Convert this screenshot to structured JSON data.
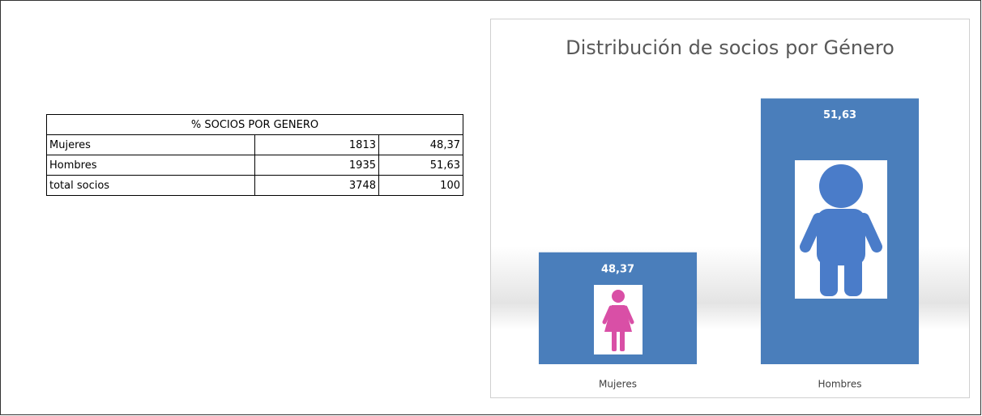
{
  "table": {
    "title": "% SOCIOS POR GENERO",
    "rows": [
      [
        "Mujeres",
        "1813",
        "48,37"
      ],
      [
        "Hombres",
        "1935",
        "51,63"
      ],
      [
        "total socios",
        "3748",
        "100"
      ]
    ]
  },
  "chart_data": {
    "type": "bar",
    "title": "Distribución de socios por Género",
    "categories": [
      "Mujeres",
      "Hombres"
    ],
    "values": [
      48.37,
      51.63
    ],
    "value_labels": [
      "48,37",
      "51,63"
    ],
    "color": "#4a7ebb",
    "ylim": [
      46,
      52
    ]
  }
}
